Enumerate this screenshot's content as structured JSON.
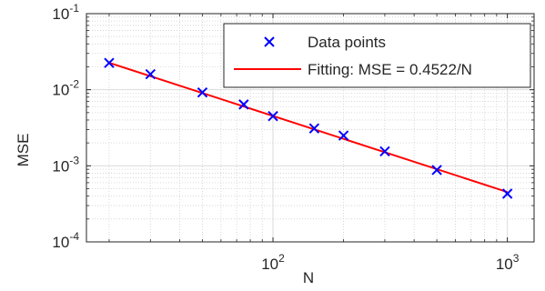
{
  "chart_data": {
    "type": "scatter",
    "xlabel": "N",
    "ylabel": "MSE",
    "xscale": "log",
    "yscale": "log",
    "xlim": [
      16,
      1300
    ],
    "ylim": [
      0.0001,
      0.1
    ],
    "grid": true,
    "legend_position": "top-right",
    "x_ticks": [
      {
        "base": "10",
        "exp": "2",
        "value": 100
      },
      {
        "base": "10",
        "exp": "3",
        "value": 1000
      }
    ],
    "y_ticks": [
      {
        "base": "10",
        "exp": "-1",
        "value": 0.1
      },
      {
        "base": "10",
        "exp": "-2",
        "value": 0.01
      },
      {
        "base": "10",
        "exp": "-3",
        "value": 0.001
      },
      {
        "base": "10",
        "exp": "-4",
        "value": 0.0001
      }
    ],
    "series": [
      {
        "name": "Data points",
        "kind": "marker",
        "marker": "x",
        "color": "#0000ff",
        "x": [
          20,
          30,
          50,
          75,
          100,
          150,
          200,
          300,
          500,
          1000
        ],
        "y": [
          0.0225,
          0.016,
          0.0092,
          0.0064,
          0.0045,
          0.0031,
          0.0025,
          0.00155,
          0.00088,
          0.00043
        ]
      },
      {
        "name": "Fitting: MSE = 0.4522/N",
        "kind": "line",
        "color": "#ff0000",
        "coefficient": 0.4522,
        "x": [
          20,
          1000
        ]
      }
    ]
  }
}
